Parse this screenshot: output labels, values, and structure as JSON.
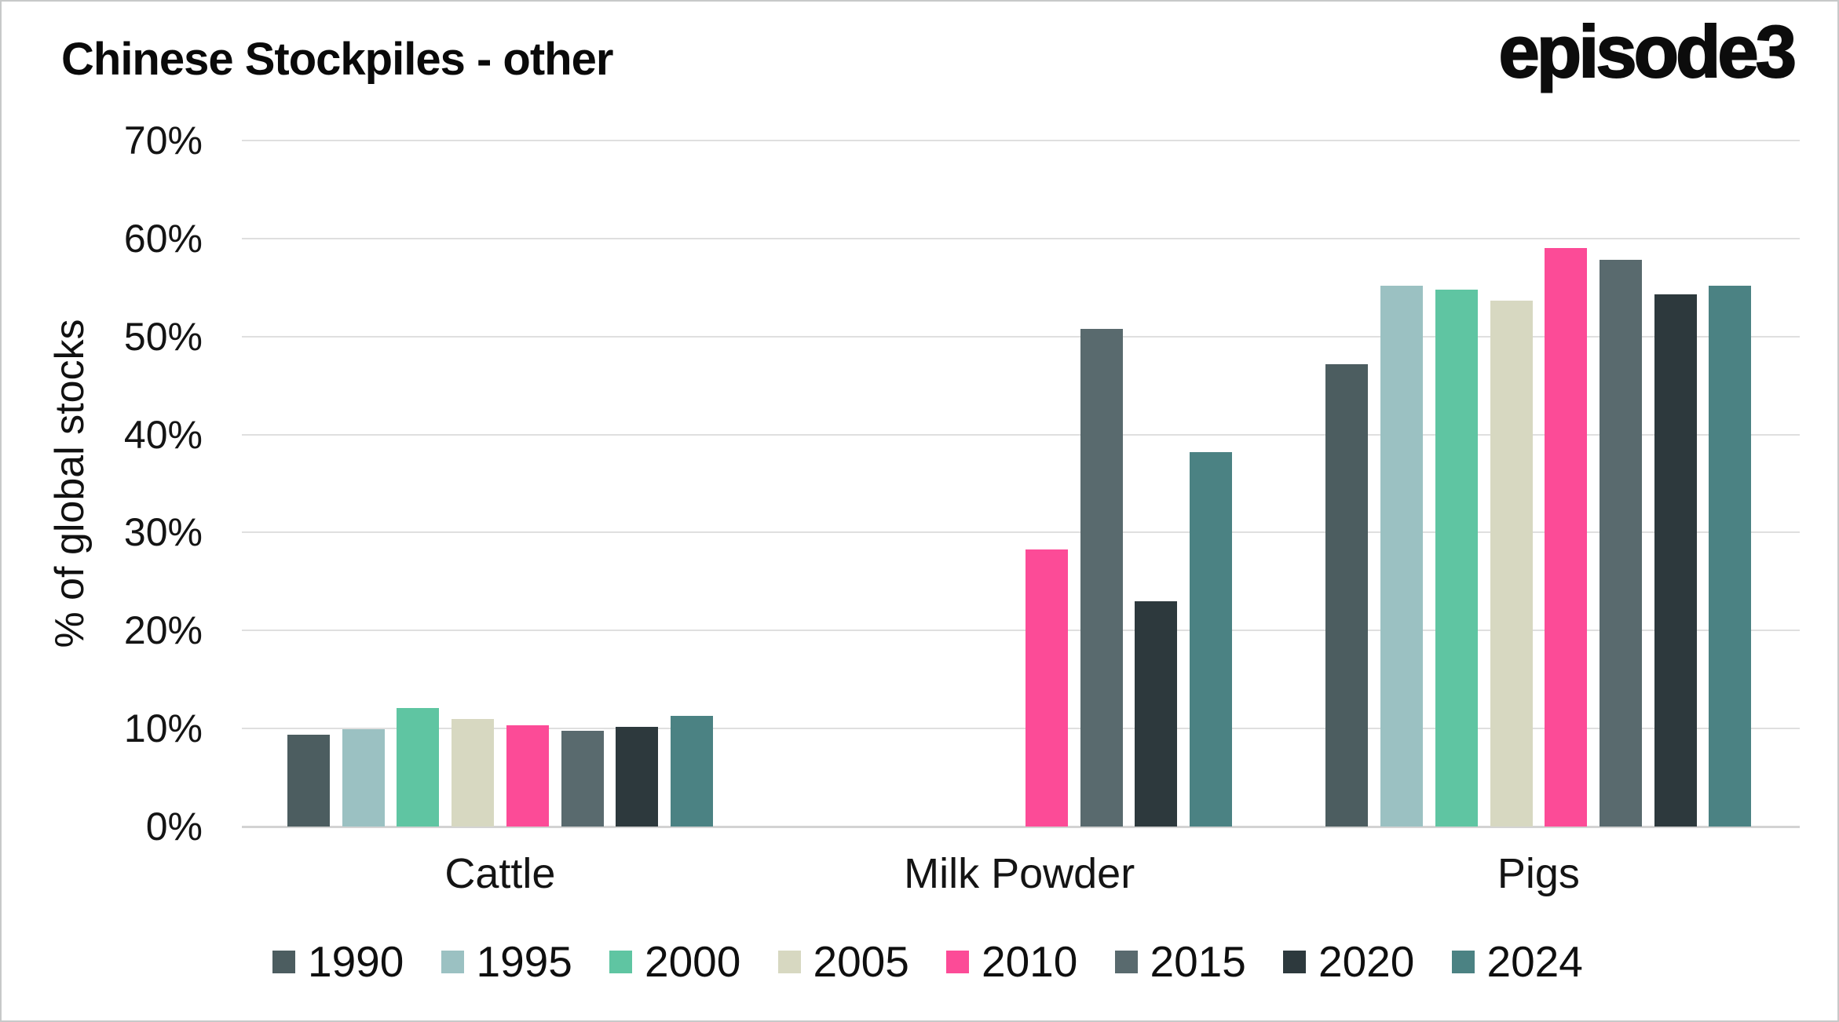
{
  "title": "Chinese Stockpiles - other",
  "logo": "episode3",
  "y_axis": {
    "label": "% of global stocks",
    "ticks": [
      "70%",
      "60%",
      "50%",
      "40%",
      "30%",
      "20%",
      "10%",
      "0%"
    ]
  },
  "chart_data": {
    "type": "bar",
    "title": "Chinese Stockpiles - other",
    "xlabel": "",
    "ylabel": "% of global stocks",
    "ylim": [
      0,
      70
    ],
    "y_tick_step": 10,
    "grid": true,
    "legend_position": "bottom",
    "categories": [
      "Cattle",
      "Milk Powder",
      "Pigs"
    ],
    "series": [
      {
        "name": "1990",
        "color": "#4C5D60",
        "values": [
          9.4,
          null,
          47.2
        ]
      },
      {
        "name": "1995",
        "color": "#9BC1C2",
        "values": [
          9.9,
          null,
          55.2
        ]
      },
      {
        "name": "2000",
        "color": "#5FC5A2",
        "values": [
          12.1,
          null,
          54.8
        ]
      },
      {
        "name": "2005",
        "color": "#D7D8C1",
        "values": [
          11.0,
          null,
          53.7
        ]
      },
      {
        "name": "2010",
        "color": "#FC4B97",
        "values": [
          10.3,
          28.3,
          59.0
        ]
      },
      {
        "name": "2015",
        "color": "#596A6E",
        "values": [
          9.8,
          50.8,
          57.8
        ]
      },
      {
        "name": "2020",
        "color": "#2D393D",
        "values": [
          10.2,
          23.0,
          54.3
        ]
      },
      {
        "name": "2024",
        "color": "#4B8283",
        "values": [
          11.3,
          38.2,
          55.2
        ]
      }
    ]
  }
}
